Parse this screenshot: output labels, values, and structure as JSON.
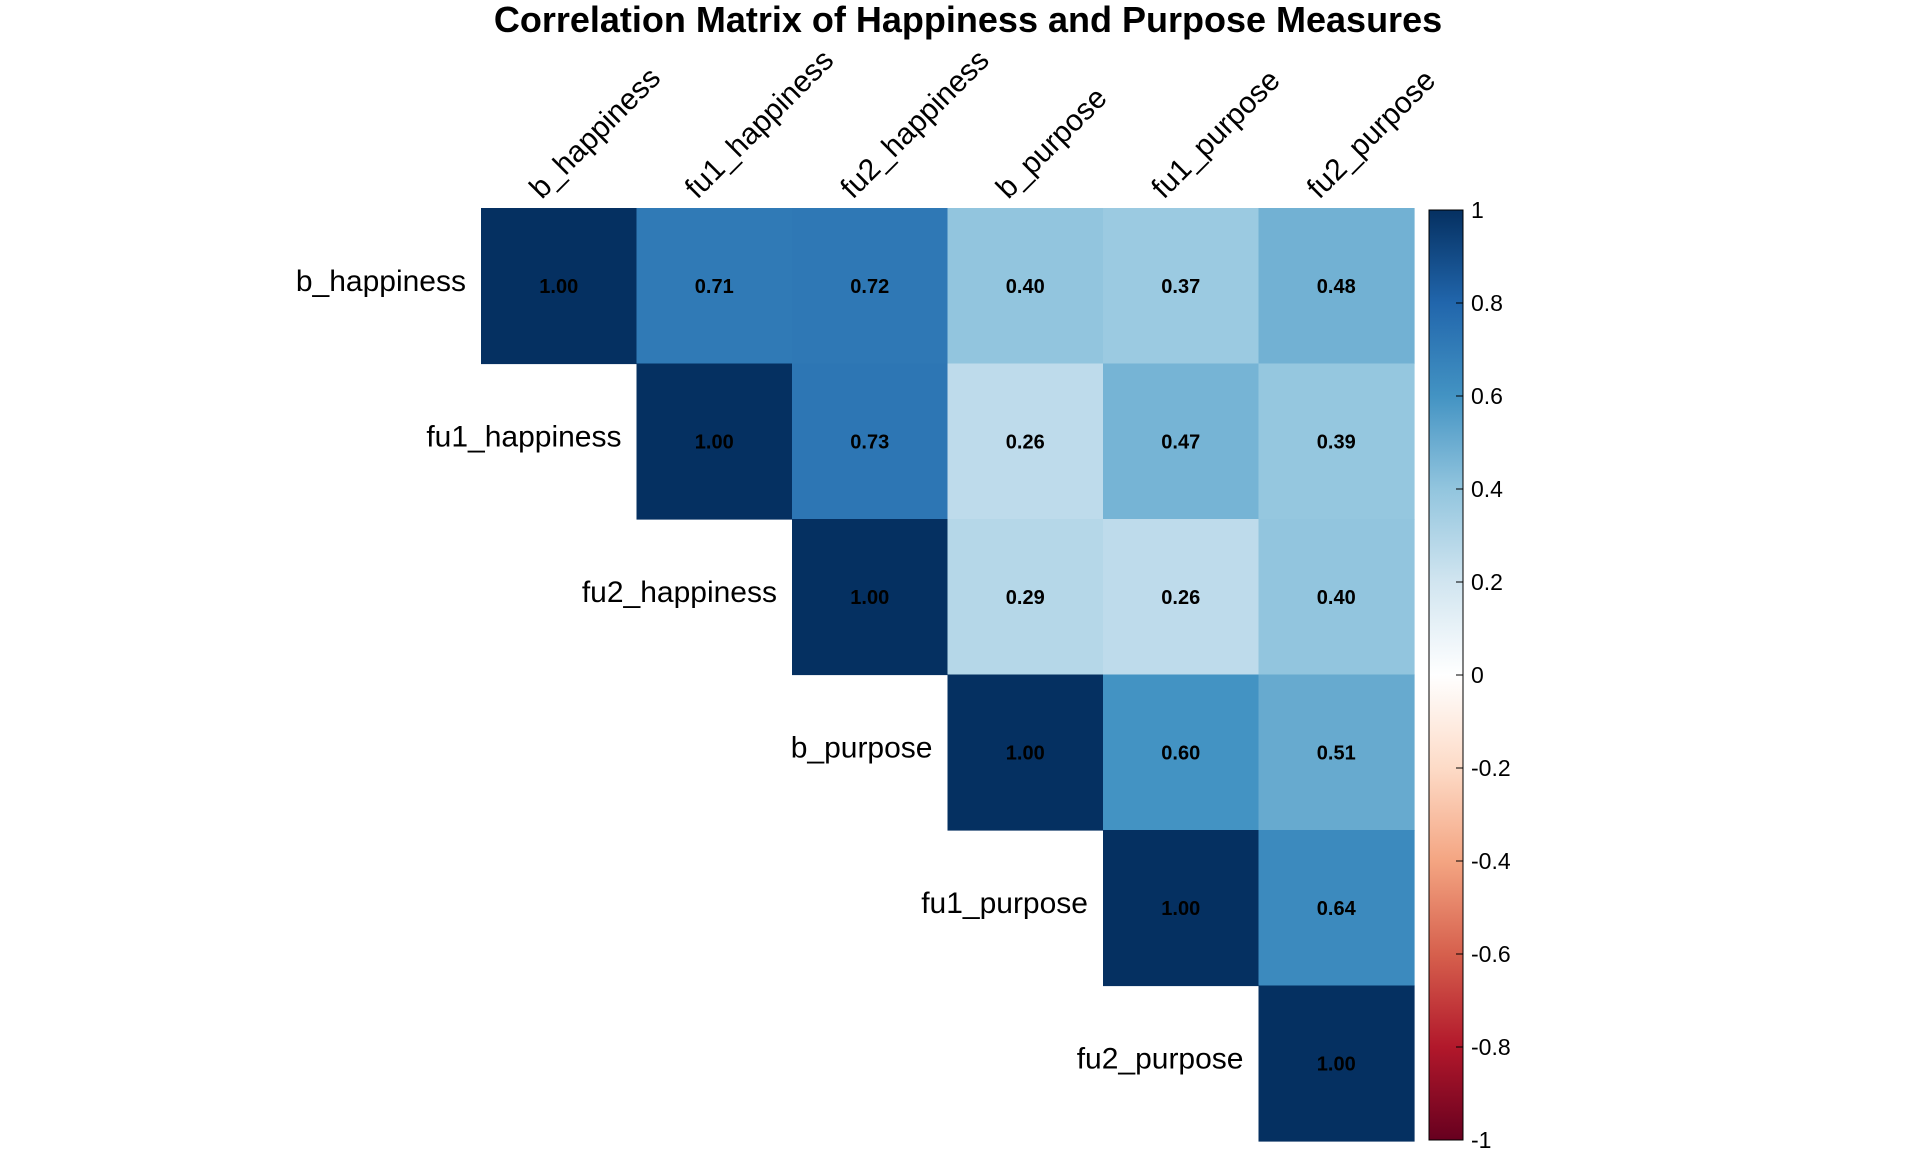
{
  "chart_data": {
    "type": "heatmap",
    "title": "Correlation Matrix of Happiness and Purpose Measures",
    "variables": [
      "b_happiness",
      "fu1_happiness",
      "fu2_happiness",
      "b_purpose",
      "fu1_purpose",
      "fu2_purpose"
    ],
    "layout": "upper-triangle",
    "matrix": [
      [
        1.0,
        0.71,
        0.72,
        0.4,
        0.37,
        0.48
      ],
      [
        0.71,
        1.0,
        0.73,
        0.26,
        0.47,
        0.39
      ],
      [
        0.72,
        0.73,
        1.0,
        0.29,
        0.26,
        0.4
      ],
      [
        0.4,
        0.26,
        0.29,
        1.0,
        0.6,
        0.51
      ],
      [
        0.37,
        0.47,
        0.26,
        0.6,
        1.0,
        0.64
      ],
      [
        0.48,
        0.39,
        0.4,
        0.51,
        0.64,
        1.0
      ]
    ],
    "value_format": "2 decimals",
    "colorbar": {
      "range": [
        -1,
        1
      ],
      "ticks": [
        1,
        0.8,
        0.6,
        0.4,
        0.2,
        0,
        -0.2,
        -0.4,
        -0.6,
        -0.8,
        -1
      ],
      "tick_labels": [
        "1",
        "0.8",
        "0.6",
        "0.4",
        "0.2",
        "0",
        "-0.2",
        "-0.4",
        "-0.6",
        "-0.8",
        "-1"
      ],
      "palette": [
        "#67001F",
        "#B2182B",
        "#D6604D",
        "#F4A582",
        "#FDDBC7",
        "#FFFFFF",
        "#D1E5F0",
        "#92C5DE",
        "#4393C3",
        "#2166AC",
        "#053061"
      ]
    }
  }
}
